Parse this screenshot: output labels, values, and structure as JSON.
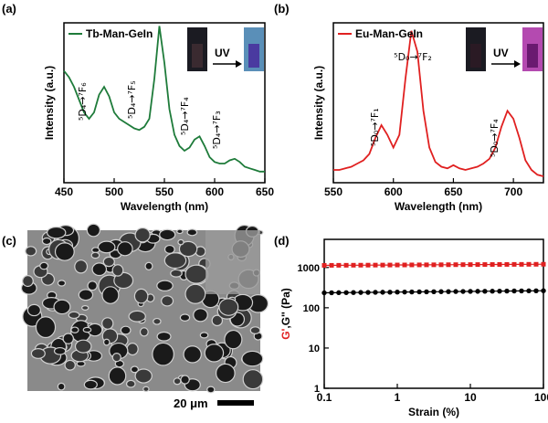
{
  "chart_data": [
    {
      "type": "line",
      "panel_label": "(a)",
      "x_label": "Wavelength (nm)",
      "y_label": "Intensity (a.u.)",
      "legend": "upper left",
      "inset_label": "UV",
      "x": [
        450,
        455,
        460,
        465,
        470,
        475,
        480,
        485,
        490,
        495,
        500,
        505,
        510,
        515,
        520,
        525,
        530,
        535,
        540,
        545,
        550,
        555,
        560,
        565,
        570,
        575,
        580,
        585,
        590,
        595,
        600,
        605,
        610,
        615,
        620,
        625,
        630,
        635,
        640,
        645,
        650
      ],
      "series": [
        {
          "name": "Tb-Man-GeIn",
          "color": "#1e7b3a",
          "values": [
            70,
            66,
            60,
            52,
            44,
            40,
            44,
            55,
            60,
            54,
            44,
            40,
            38,
            36,
            34,
            33,
            35,
            40,
            65,
            98,
            75,
            46,
            30,
            23,
            20,
            22,
            27,
            29,
            23,
            16,
            13,
            12,
            12,
            14,
            15,
            13,
            10,
            9,
            8,
            7,
            7
          ]
        }
      ],
      "xlim": [
        450,
        650
      ],
      "xticks": [
        450,
        500,
        550,
        600,
        650
      ],
      "ylim": [
        0,
        100
      ],
      "annotations": [
        "⁵D₄→⁷F₆",
        "⁵D₄→⁷F₅",
        "⁵D₄→⁷F₄",
        "⁵D₄→⁷F₃"
      ]
    },
    {
      "type": "line",
      "panel_label": "(b)",
      "x_label": "Wavelength (nm)",
      "y_label": "Intensity (a.u.)",
      "legend": "upper left",
      "inset_label": "UV",
      "x": [
        550,
        555,
        560,
        565,
        570,
        575,
        580,
        585,
        590,
        595,
        600,
        605,
        610,
        615,
        620,
        625,
        630,
        635,
        640,
        645,
        650,
        655,
        660,
        665,
        670,
        675,
        680,
        685,
        690,
        695,
        700,
        705,
        710,
        715,
        720,
        725
      ],
      "series": [
        {
          "name": "Eu-Man-GeIn",
          "color": "#e02020",
          "values": [
            8,
            8,
            9,
            10,
            12,
            14,
            18,
            28,
            36,
            30,
            22,
            30,
            65,
            95,
            82,
            45,
            22,
            13,
            10,
            9,
            11,
            9,
            8,
            9,
            10,
            12,
            15,
            22,
            35,
            45,
            40,
            28,
            14,
            8,
            5,
            4
          ]
        }
      ],
      "xlim": [
        550,
        725
      ],
      "xticks": [
        550,
        600,
        650,
        700
      ],
      "ylim": [
        0,
        100
      ],
      "annotations": [
        "⁵D₀→⁷F₁",
        "⁵D₀→⁷F₂",
        "⁵D₀→⁷F₄"
      ]
    },
    {
      "type": "image",
      "panel_label": "(c)",
      "scale_bar_label": "20 μm"
    },
    {
      "type": "scatter",
      "panel_label": "(d)",
      "x_label": "Strain (%)",
      "y_label_sep": ",",
      "y_label_unit": " (Pa)",
      "xscale": "log",
      "yscale": "log",
      "x": [
        0.1,
        0.126,
        0.158,
        0.2,
        0.251,
        0.316,
        0.398,
        0.501,
        0.631,
        0.794,
        1,
        1.26,
        1.58,
        2,
        2.51,
        3.16,
        3.98,
        5.01,
        6.31,
        7.94,
        10,
        12.6,
        15.8,
        20,
        25.1,
        31.6,
        39.8,
        50.1,
        63.1,
        79.4,
        100
      ],
      "series": [
        {
          "name": "G'",
          "color": "#e02020",
          "marker": "square",
          "values": [
            1130,
            1132,
            1135,
            1137,
            1140,
            1142,
            1145,
            1147,
            1150,
            1152,
            1155,
            1157,
            1160,
            1162,
            1165,
            1167,
            1170,
            1172,
            1175,
            1177,
            1180,
            1182,
            1185,
            1187,
            1190,
            1192,
            1195,
            1197,
            1200,
            1202,
            1205
          ]
        },
        {
          "name": "G''",
          "color": "#000000",
          "marker": "circle",
          "values": [
            235,
            236,
            237,
            238,
            239,
            240,
            241,
            242,
            243,
            244,
            245,
            246,
            247,
            248,
            249,
            250,
            251,
            252,
            253,
            254,
            255,
            256,
            257,
            258,
            259,
            260,
            261,
            262,
            263,
            264,
            265
          ]
        }
      ],
      "xlim": [
        0.1,
        100
      ],
      "xticks": [
        0.1,
        1,
        10,
        100
      ],
      "ylim": [
        1,
        5000
      ],
      "yticks": [
        1,
        10,
        100,
        1000
      ]
    }
  ]
}
